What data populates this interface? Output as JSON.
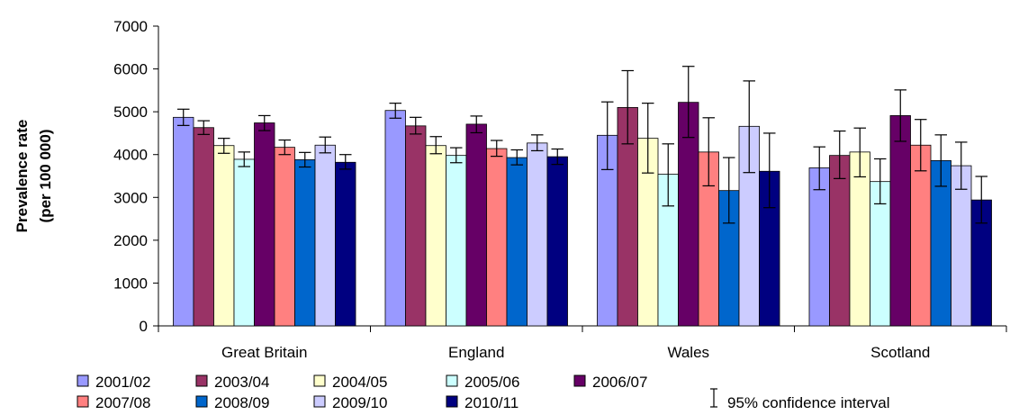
{
  "chart_data": {
    "type": "bar",
    "title": "",
    "xlabel": "",
    "ylabel_lines": [
      "Prevalence rate",
      "(per 100 000)"
    ],
    "ylim": [
      0,
      7000
    ],
    "yticks": [
      0,
      1000,
      2000,
      3000,
      4000,
      5000,
      6000,
      7000
    ],
    "grid": false,
    "legend_position": "bottom",
    "categories": [
      "Great Britain",
      "England",
      "Wales",
      "Scotland"
    ],
    "series": [
      {
        "name": "2001/02",
        "color": "#9999ff",
        "values": [
          4870,
          5030,
          4450,
          3690
        ],
        "ci_low": [
          4680,
          4850,
          3650,
          3180
        ],
        "ci_high": [
          5060,
          5200,
          5230,
          4180
        ]
      },
      {
        "name": "2003/04",
        "color": "#993366",
        "values": [
          4630,
          4670,
          5100,
          3980
        ],
        "ci_low": [
          4470,
          4480,
          4250,
          3440
        ],
        "ci_high": [
          4790,
          4870,
          5960,
          4550
        ]
      },
      {
        "name": "2004/05",
        "color": "#ffffcc",
        "values": [
          4210,
          4210,
          4380,
          4060
        ],
        "ci_low": [
          4030,
          4020,
          3570,
          3480
        ],
        "ci_high": [
          4380,
          4420,
          5200,
          4620
        ]
      },
      {
        "name": "2005/06",
        "color": "#ccffff",
        "values": [
          3890,
          3980,
          3540,
          3370
        ],
        "ci_low": [
          3720,
          3810,
          2800,
          2850
        ],
        "ci_high": [
          4060,
          4160,
          4250,
          3900
        ]
      },
      {
        "name": "2006/07",
        "color": "#660066",
        "values": [
          4740,
          4710,
          5220,
          4910
        ],
        "ci_low": [
          4560,
          4510,
          4400,
          4310
        ],
        "ci_high": [
          4910,
          4900,
          6060,
          5510
        ]
      },
      {
        "name": "2007/08",
        "color": "#ff8080",
        "values": [
          4170,
          4140,
          4060,
          4220
        ],
        "ci_low": [
          4000,
          3960,
          3270,
          3620
        ],
        "ci_high": [
          4340,
          4330,
          4860,
          4820
        ]
      },
      {
        "name": "2008/09",
        "color": "#0066cc",
        "values": [
          3880,
          3930,
          3160,
          3860
        ],
        "ci_low": [
          3710,
          3760,
          2400,
          3260
        ],
        "ci_high": [
          4050,
          4110,
          3930,
          4460
        ]
      },
      {
        "name": "2009/10",
        "color": "#ccccff",
        "values": [
          4220,
          4270,
          4660,
          3740
        ],
        "ci_low": [
          4040,
          4090,
          3580,
          3190
        ],
        "ci_high": [
          4410,
          4460,
          5720,
          4290
        ]
      },
      {
        "name": "2010/11",
        "color": "#000080",
        "values": [
          3820,
          3950,
          3610,
          2940
        ],
        "ci_low": [
          3660,
          3770,
          2760,
          2400
        ],
        "ci_high": [
          4000,
          4130,
          4500,
          3490
        ]
      }
    ],
    "ci_legend_label": "95% confidence interval"
  }
}
